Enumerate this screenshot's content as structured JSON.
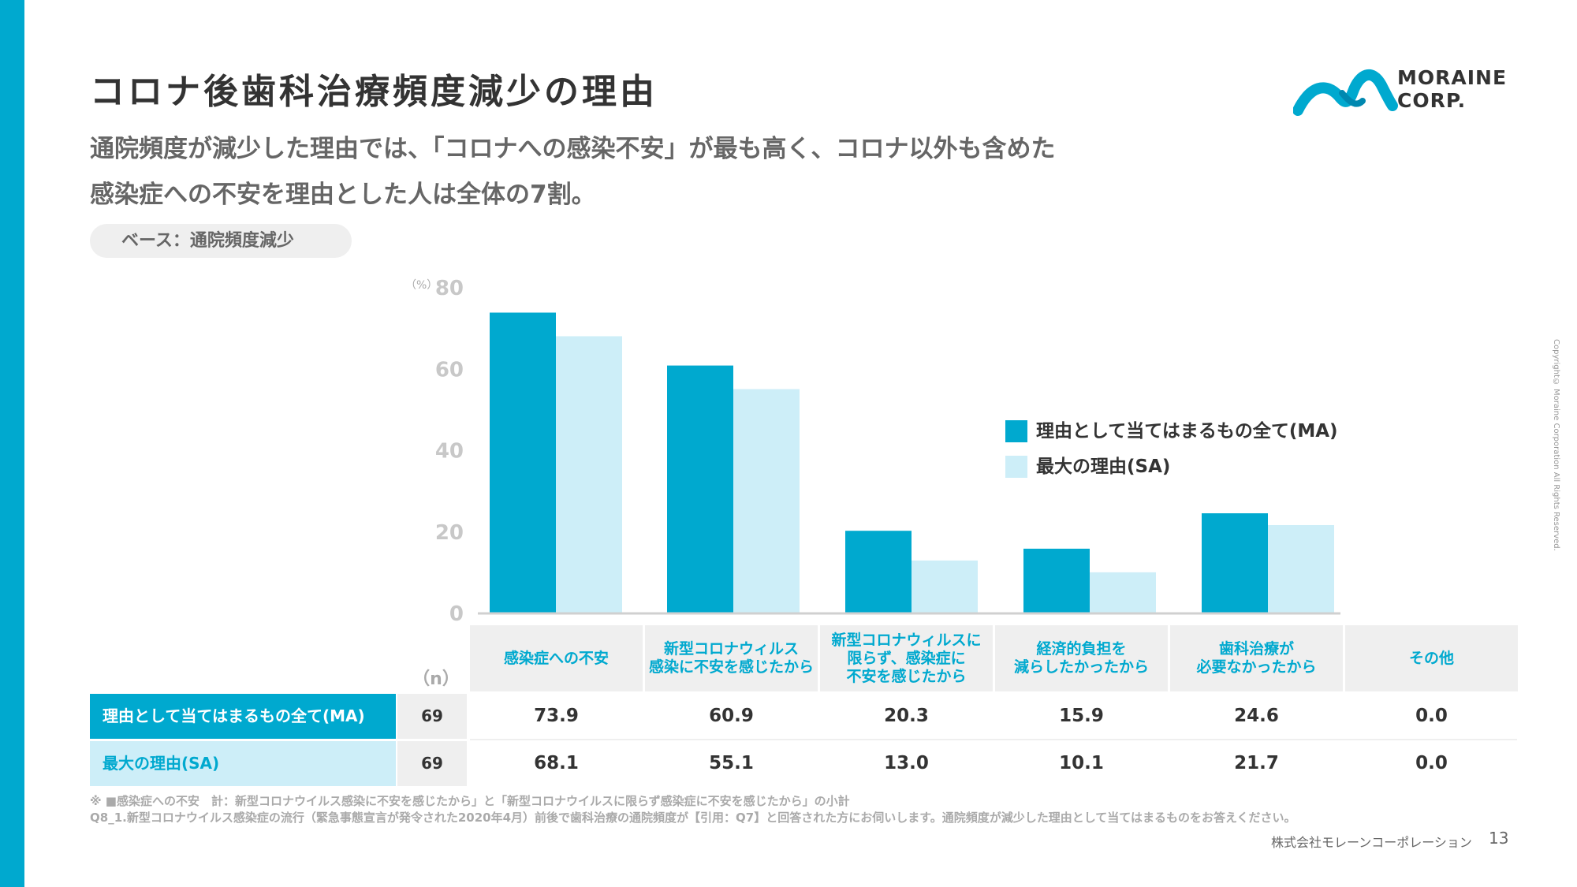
{
  "title": "コロナ後歯科治療頻度減少の理由",
  "subtitle_line1": "通院頻度が減少した理由では、「コロナへの感染不安」が最も高く、コロナ以外も含めた",
  "subtitle_line2": "感染症への不安を理由とした人は全体の7割。",
  "base_label": "ベース：通院頻度減少",
  "logo": {
    "line1": "MORAINE",
    "line2": "CORP."
  },
  "copyright": "Copyright© Moraine Corporation All Rights Reserved.",
  "colors": {
    "accent": "#00a9cf",
    "light": "#cdeef8",
    "gray_cell": "#efefef"
  },
  "chart_data": {
    "type": "bar",
    "unit_label": "（%）",
    "ylim": [
      0,
      80
    ],
    "yticks": [
      "0",
      "20",
      "40",
      "60",
      "80"
    ],
    "categories": [
      "感染症への不安",
      "新型コロナウィルス感染に不安を感じたから",
      "新型コロナウィルスに限らず、感染症に不安を感じたから",
      "経済的負担を減らしたかったから",
      "歯科治療が必要なかったから",
      "その他"
    ],
    "series": [
      {
        "name": "理由として当てはまるもの全て(MA)",
        "color": "#00a9cf",
        "values": [
          73.9,
          60.9,
          20.3,
          15.9,
          24.6,
          0.0
        ]
      },
      {
        "name": "最大の理由(SA)",
        "color": "#cdeef8",
        "values": [
          68.1,
          55.1,
          13.0,
          10.1,
          21.7,
          0.0
        ]
      }
    ]
  },
  "table": {
    "n_header": "（n）",
    "category_labels": [
      [
        "感染症への不安"
      ],
      [
        "新型コロナウィルス",
        "感染に不安を感じたから"
      ],
      [
        "新型コロナウィルスに",
        "限らず、感染症に",
        "不安を感じたから"
      ],
      [
        "経済的負担を",
        "減らしたかったから"
      ],
      [
        "歯科治療が",
        "必要なかったから"
      ],
      [
        "その他"
      ]
    ],
    "rows": [
      {
        "label": "理由として当てはまるもの全て(MA)",
        "n": "69",
        "values": [
          "73.9",
          "60.9",
          "20.3",
          "15.9",
          "24.6",
          "0.0"
        ]
      },
      {
        "label": "最大の理由(SA)",
        "n": "69",
        "values": [
          "68.1",
          "55.1",
          "13.0",
          "10.1",
          "21.7",
          "0.0"
        ]
      }
    ]
  },
  "notes": {
    "note1": "※ ■感染症への不安　計：新型コロナウイルス感染に不安を感じたから」と「新型コロナウイルスに限らず感染症に不安を感じたから」の小計",
    "note2": "Q8_1.新型コロナウイルス感染症の流行（緊急事態宣言が発令された2020年4月）前後で歯科治療の通院頻度が【引用：Q7】と回答された方にお伺いします。通院頻度が減少した理由として当てはまるものをお答えください。"
  },
  "footer": {
    "company": "株式会社モレーンコーポレーション",
    "page_number": "13"
  }
}
